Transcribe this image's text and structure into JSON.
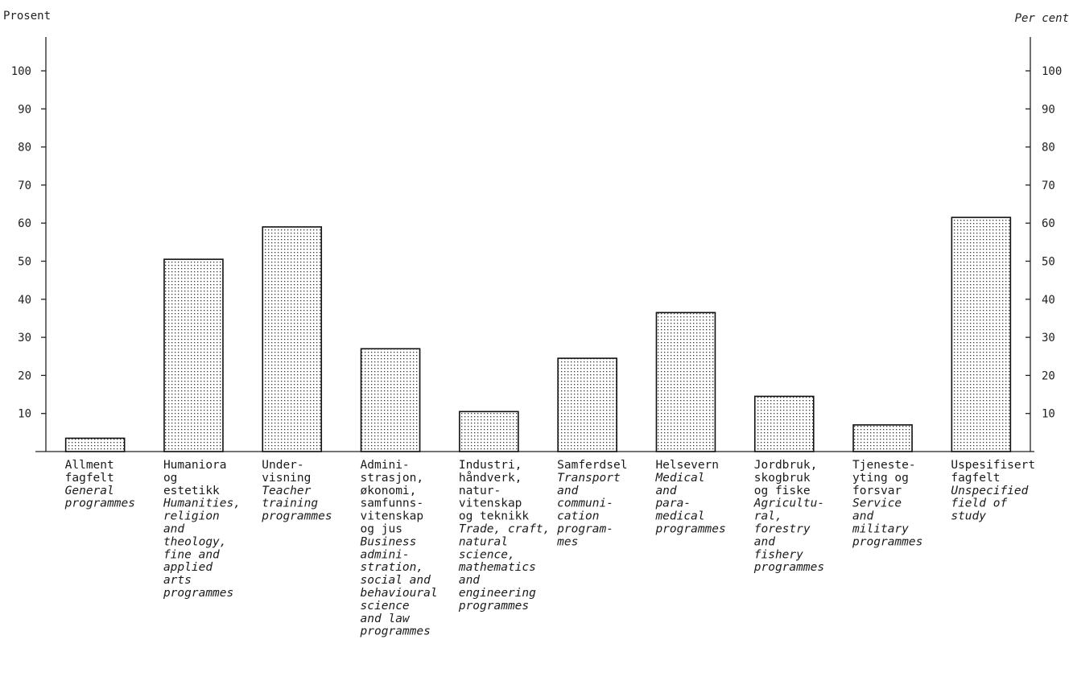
{
  "chart_data": {
    "type": "bar",
    "y_unit_left": "Prosent",
    "y_unit_right": "Per cent",
    "ylim": [
      0,
      110
    ],
    "yticks": [
      10,
      20,
      30,
      40,
      50,
      60,
      70,
      80,
      90,
      100
    ],
    "grid": false,
    "categories": [
      {
        "no": [
          "Allment",
          "fagfelt"
        ],
        "en": [
          "General",
          "programmes"
        ]
      },
      {
        "no": [
          "Humaniora",
          "og",
          "estetikk"
        ],
        "en": [
          "Humanities,",
          "religion",
          "and",
          "theology,",
          "fine and",
          "applied",
          "arts",
          "programmes"
        ]
      },
      {
        "no": [
          "Under-",
          "visning"
        ],
        "en": [
          "Teacher",
          "training",
          "programmes"
        ]
      },
      {
        "no": [
          "Admini-",
          "strasjon,",
          "økonomi,",
          "samfunns-",
          "vitenskap",
          "og jus"
        ],
        "en": [
          "Business",
          "admini-",
          "stration,",
          "social and",
          "behavioural",
          "science",
          "and law",
          "programmes"
        ]
      },
      {
        "no": [
          "Industri,",
          "håndverk,",
          "natur-",
          "vitenskap",
          "og teknikk"
        ],
        "en": [
          "Trade, craft,",
          "natural",
          "science,",
          "mathematics",
          "and",
          "engineering",
          "programmes"
        ]
      },
      {
        "no": [
          "Samferdsel"
        ],
        "en": [
          "Transport",
          "and",
          "communi-",
          "cation",
          "program-",
          "mes"
        ]
      },
      {
        "no": [
          "Helsevern"
        ],
        "en": [
          "Medical",
          "and",
          "para-",
          "medical",
          "programmes"
        ]
      },
      {
        "no": [
          "Jordbruk,",
          "skogbruk",
          "og fiske"
        ],
        "en": [
          "Agricultu-",
          "ral,",
          "forestry",
          "and",
          "fishery",
          "programmes"
        ]
      },
      {
        "no": [
          "Tjeneste-",
          "yting og",
          "forsvar"
        ],
        "en": [
          "Service",
          "and",
          "military",
          "programmes"
        ]
      },
      {
        "no": [
          "Uspesifisert",
          "fagfelt"
        ],
        "en": [
          "Unspecified",
          "field of",
          "study"
        ]
      }
    ],
    "values": [
      3.5,
      50.5,
      59,
      27,
      10.5,
      24.5,
      36.5,
      14.5,
      7,
      61.5
    ]
  }
}
